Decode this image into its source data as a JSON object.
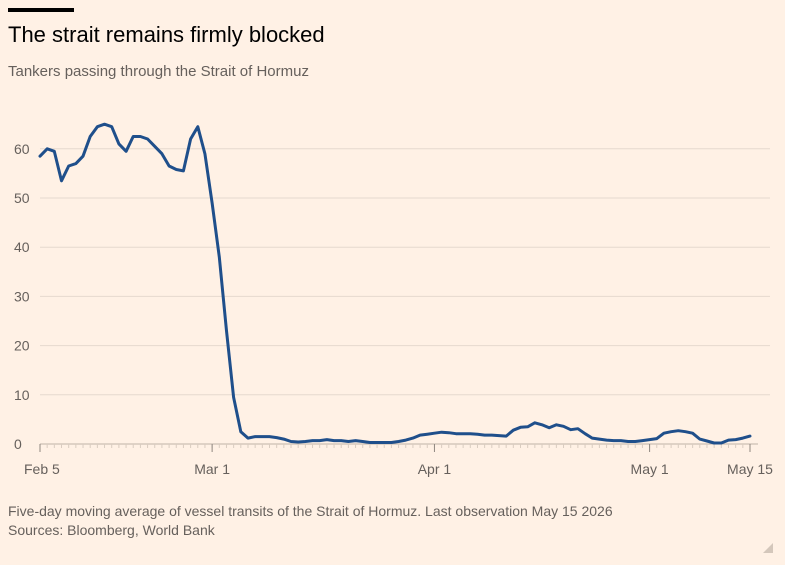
{
  "header": {
    "title": "The strait remains firmly blocked",
    "subtitle": "Tankers passing through the Strait of Hormuz"
  },
  "footer": {
    "note": "Five-day moving average of vessel transits of the Strait of Hormuz. Last observation May 15 2026",
    "sources": "Sources: Bloomberg, World Bank"
  },
  "colors": {
    "background": "#fff1e5",
    "line": "#1f4f8b",
    "gridline": "#e6d9ce",
    "text": "#66605c"
  },
  "chart_data": {
    "type": "line",
    "title": "The strait remains firmly blocked",
    "subtitle": "Tankers passing through the Strait of Hormuz",
    "xlabel": "",
    "ylabel": "",
    "ylim": [
      0,
      65
    ],
    "yticks": [
      0,
      10,
      20,
      30,
      40,
      50,
      60
    ],
    "xticks": [
      {
        "date": "2026-02-05",
        "label": "Feb 5"
      },
      {
        "date": "2026-03-01",
        "label": "Mar 1"
      },
      {
        "date": "2026-04-01",
        "label": "Apr 1"
      },
      {
        "date": "2026-05-01",
        "label": "May 1"
      },
      {
        "date": "2026-05-15",
        "label": "May 15"
      }
    ],
    "xlim": [
      "2026-02-05",
      "2026-05-15"
    ],
    "grid": "horizontal",
    "legend": "none",
    "series": [
      {
        "x": [
          "2026-02-05",
          "2026-02-06",
          "2026-02-07",
          "2026-02-08",
          "2026-02-09",
          "2026-02-10",
          "2026-02-11",
          "2026-02-12",
          "2026-02-13",
          "2026-02-14",
          "2026-02-15",
          "2026-02-16",
          "2026-02-17",
          "2026-02-18",
          "2026-02-19",
          "2026-02-20",
          "2026-02-21",
          "2026-02-22",
          "2026-02-23",
          "2026-02-24",
          "2026-02-25",
          "2026-02-26",
          "2026-02-27",
          "2026-02-28",
          "2026-03-01",
          "2026-03-02",
          "2026-03-03",
          "2026-03-04",
          "2026-03-05",
          "2026-03-06",
          "2026-03-07",
          "2026-03-08",
          "2026-03-09",
          "2026-03-10",
          "2026-03-11",
          "2026-03-12",
          "2026-03-13",
          "2026-03-14",
          "2026-03-15",
          "2026-03-16",
          "2026-03-17",
          "2026-03-18",
          "2026-03-19",
          "2026-03-20",
          "2026-03-21",
          "2026-03-22",
          "2026-03-23",
          "2026-03-24",
          "2026-03-25",
          "2026-03-26",
          "2026-03-27",
          "2026-03-28",
          "2026-03-29",
          "2026-03-30",
          "2026-03-31",
          "2026-04-01",
          "2026-04-02",
          "2026-04-03",
          "2026-04-04",
          "2026-04-05",
          "2026-04-06",
          "2026-04-07",
          "2026-04-08",
          "2026-04-09",
          "2026-04-10",
          "2026-04-11",
          "2026-04-12",
          "2026-04-13",
          "2026-04-14",
          "2026-04-15",
          "2026-04-16",
          "2026-04-17",
          "2026-04-18",
          "2026-04-19",
          "2026-04-20",
          "2026-04-21",
          "2026-04-22",
          "2026-04-23",
          "2026-04-24",
          "2026-04-25",
          "2026-04-26",
          "2026-04-27",
          "2026-04-28",
          "2026-04-29",
          "2026-04-30",
          "2026-05-01",
          "2026-05-02",
          "2026-05-03",
          "2026-05-04",
          "2026-05-05",
          "2026-05-06",
          "2026-05-07",
          "2026-05-08",
          "2026-05-09",
          "2026-05-10",
          "2026-05-11",
          "2026-05-12",
          "2026-05-13",
          "2026-05-14",
          "2026-05-15"
        ],
        "values": [
          58.5,
          60,
          59.5,
          53.5,
          56.5,
          57,
          58.5,
          62.5,
          64.5,
          65,
          64.5,
          61,
          59.5,
          62.5,
          62.5,
          62,
          60.5,
          59,
          56.5,
          55.8,
          55.5,
          62,
          64.5,
          59,
          49,
          38,
          23,
          9.5,
          2.5,
          1.2,
          1.5,
          1.5,
          1.5,
          1.3,
          1,
          0.5,
          0.4,
          0.5,
          0.7,
          0.7,
          0.9,
          0.7,
          0.7,
          0.5,
          0.7,
          0.5,
          0.3,
          0.3,
          0.3,
          0.3,
          0.5,
          0.8,
          1.2,
          1.8,
          2,
          2.2,
          2.4,
          2.3,
          2.1,
          2.1,
          2.1,
          2,
          1.8,
          1.8,
          1.7,
          1.6,
          2.8,
          3.4,
          3.5,
          4.3,
          3.9,
          3.3,
          3.9,
          3.6,
          2.9,
          3.1,
          2.1,
          1.2,
          1,
          0.8,
          0.7,
          0.7,
          0.5,
          0.5,
          0.7,
          0.9,
          1.1,
          2.2,
          2.5,
          2.7,
          2.5,
          2.2,
          1,
          0.6,
          0.2,
          0.2,
          0.8,
          0.9,
          1.2,
          1.6
        ]
      }
    ]
  }
}
